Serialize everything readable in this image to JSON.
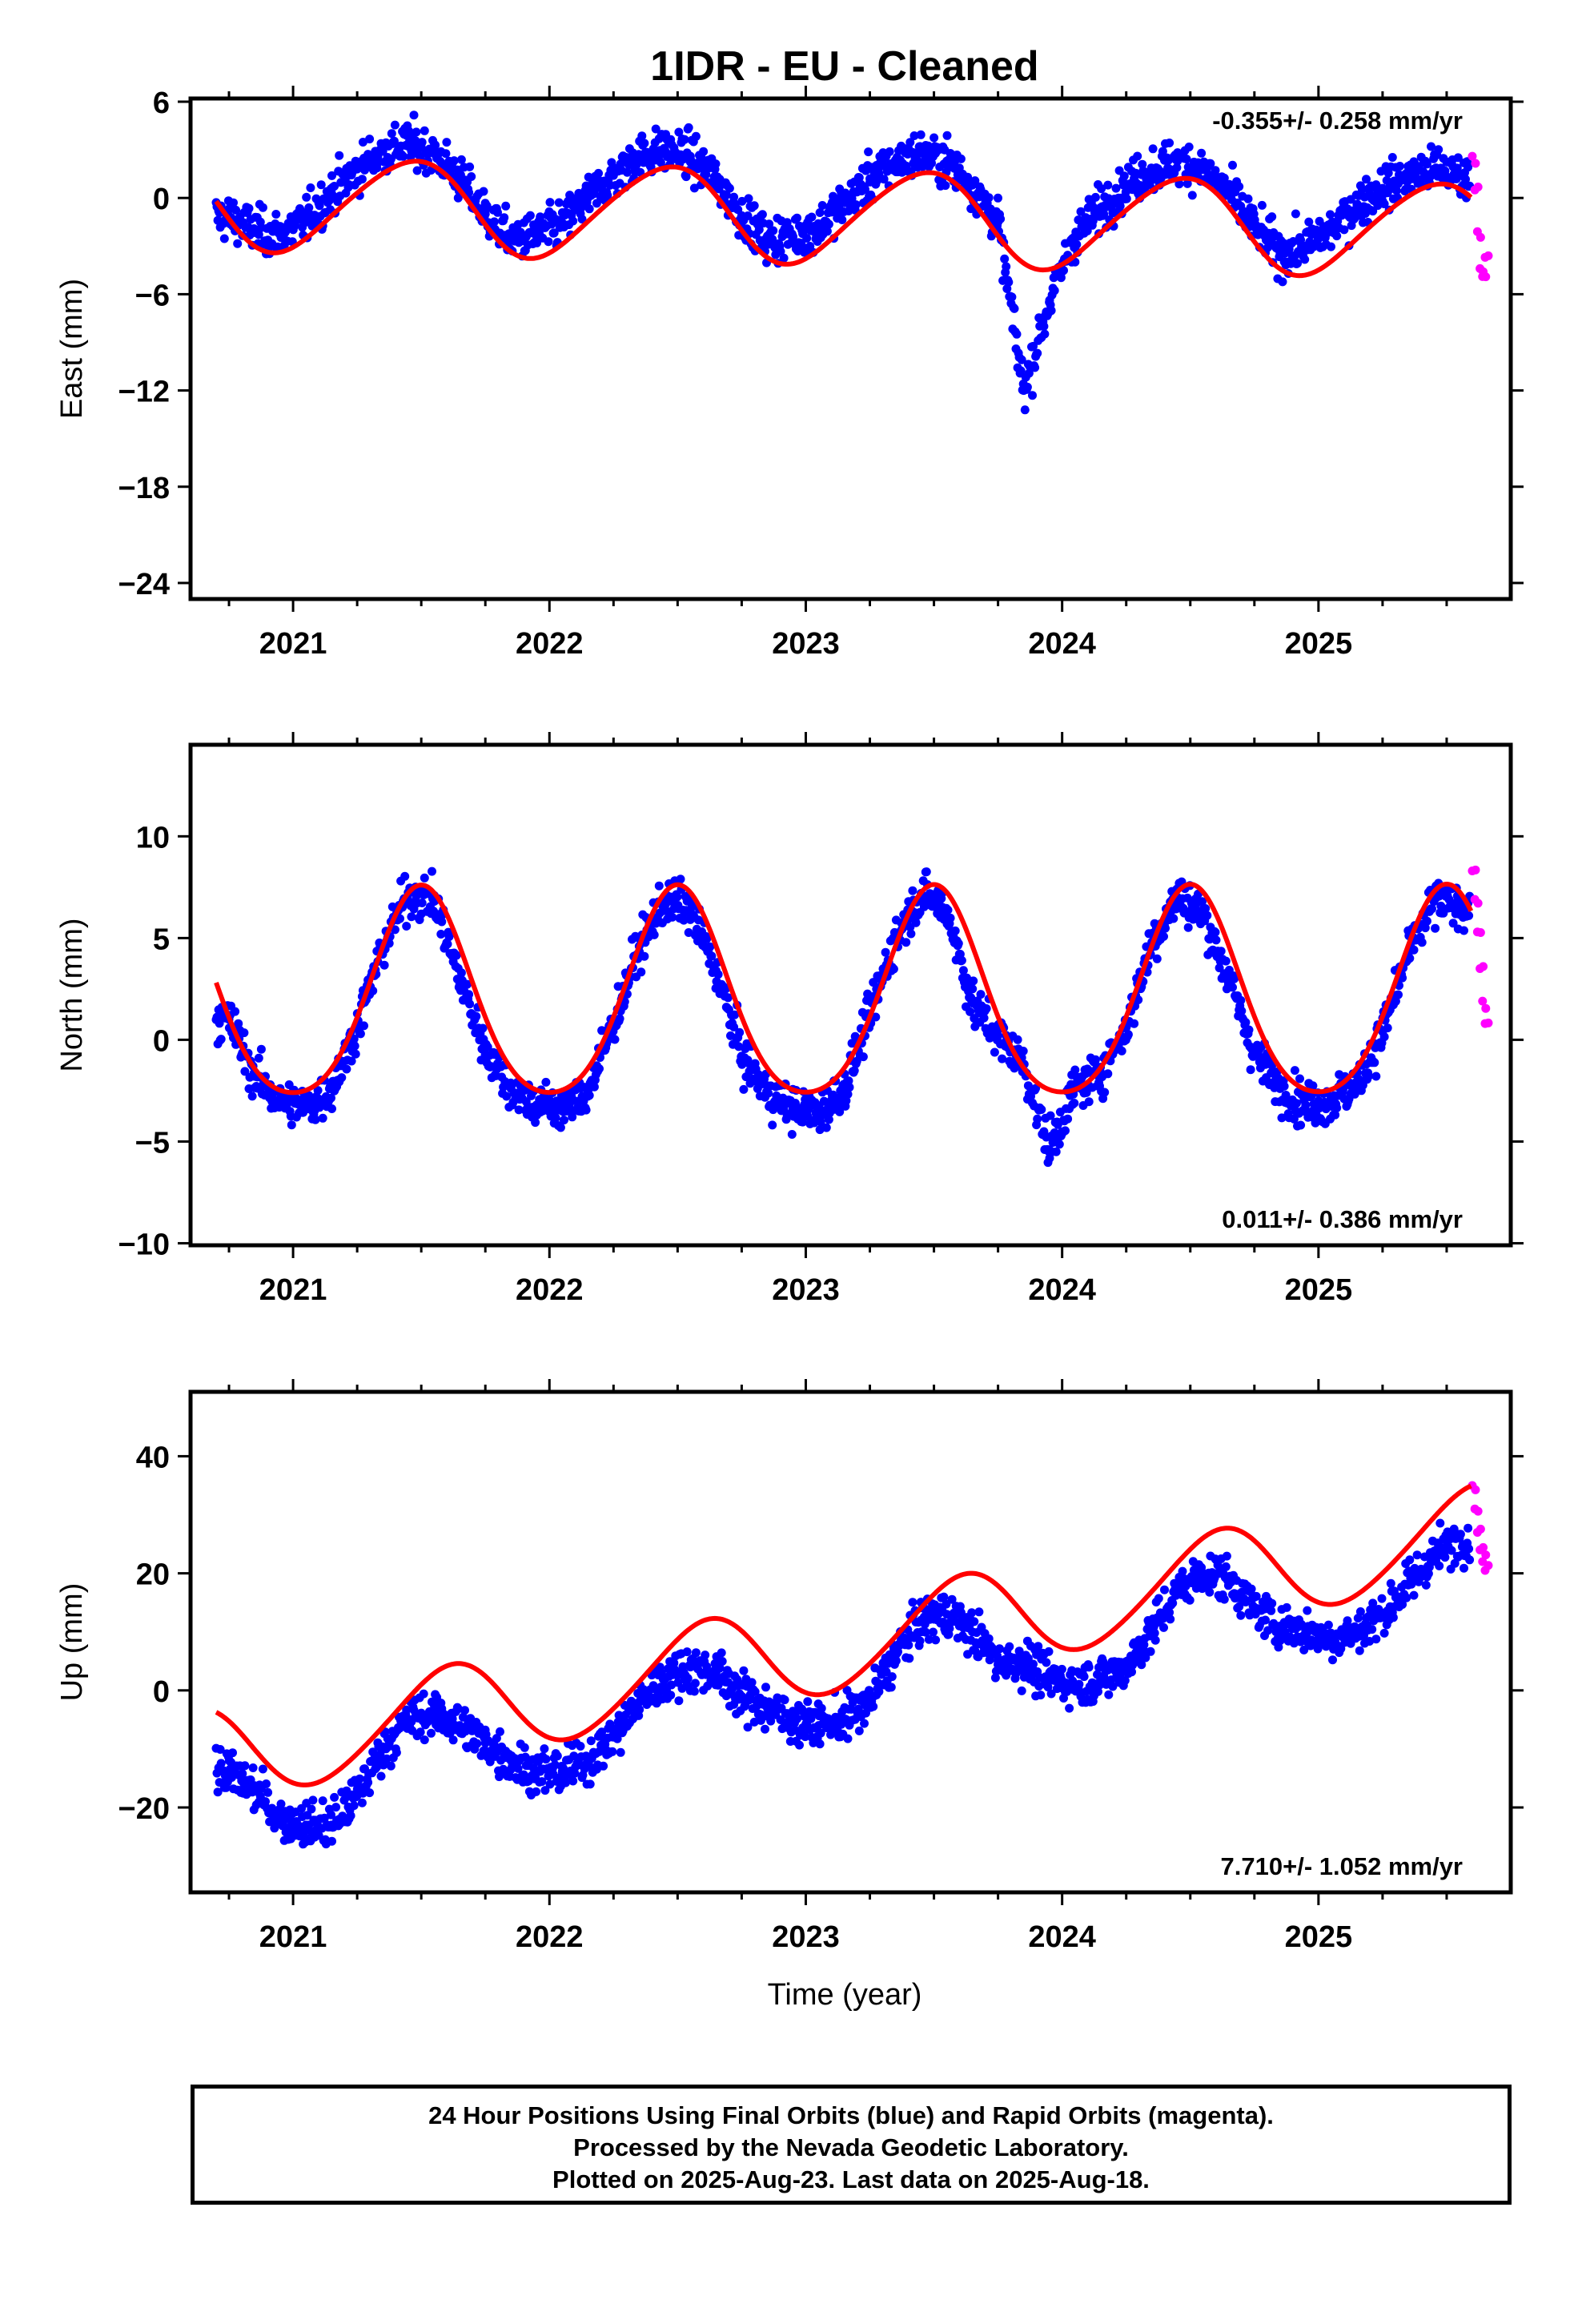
{
  "title": "1IDR  - EU - Cleaned",
  "xlabel": "Time (year)",
  "footer": {
    "line1": "24 Hour Positions Using Final Orbits (blue) and Rapid Orbits (magenta).",
    "line2": "Processed by the Nevada Geodetic Laboratory.",
    "line3": "Plotted on 2025-Aug-23. Last data on 2025-Aug-18."
  },
  "colors": {
    "final": "#0000ff",
    "rapid": "#ff00ff",
    "model": "#ff0000",
    "frame": "#000000"
  },
  "chart_data": [
    {
      "type": "scatter",
      "panel": "east",
      "title": "1IDR  - EU - Cleaned",
      "ylabel": "East (mm)",
      "xlabel": "",
      "xlim": [
        2020.6,
        2025.75
      ],
      "ylim": [
        -25,
        6.2
      ],
      "xticks": [
        2021,
        2022,
        2023,
        2024,
        2025
      ],
      "yticks": [
        6,
        0,
        -6,
        -12,
        -18,
        -24
      ],
      "rate": "-0.355+/- 0.258 mm/yr",
      "rate_position": "top-right",
      "grid": false,
      "model": {
        "offset": -0.3,
        "trend": -0.355,
        "annual_amp": 2.9,
        "annual_peak": 0.45,
        "semi_amp": 0.3,
        "semi_peak": 0.1
      },
      "series": [
        {
          "name": "Final Orbits",
          "color": "#0000ff",
          "x": [
            2020.75,
            2020.85,
            2020.95,
            2021.05,
            2021.15,
            2021.25,
            2021.35,
            2021.45,
            2021.55,
            2021.65,
            2021.75,
            2021.85,
            2021.95,
            2022.05,
            2022.15,
            2022.25,
            2022.35,
            2022.45,
            2022.55,
            2022.65,
            2022.75,
            2022.85,
            2022.95,
            2023.05,
            2023.15,
            2023.25,
            2023.35,
            2023.45,
            2023.55,
            2023.65,
            2023.75,
            2023.85,
            2023.95,
            2024.05,
            2024.15,
            2024.25,
            2024.35,
            2024.45,
            2024.55,
            2024.65,
            2024.75,
            2024.85,
            2024.95,
            2025.05,
            2025.15,
            2025.25,
            2025.35,
            2025.45,
            2025.55
          ],
          "y": [
            -1.2,
            -2.0,
            -2.3,
            -1.4,
            0.3,
            1.8,
            2.9,
            3.4,
            2.8,
            1.2,
            -1.0,
            -2.6,
            -2.3,
            -1.6,
            0.0,
            1.4,
            2.6,
            3.0,
            2.6,
            1.1,
            -1.1,
            -2.6,
            -2.4,
            -1.8,
            -0.3,
            1.2,
            2.2,
            2.8,
            2.3,
            0.8,
            -1.5,
            -12.0,
            -6.5,
            -2.4,
            -0.6,
            0.8,
            1.8,
            2.3,
            1.8,
            0.4,
            -1.8,
            -3.4,
            -3.0,
            -2.0,
            -0.4,
            0.6,
            1.4,
            1.8,
            1.4
          ]
        },
        {
          "name": "Rapid Orbits",
          "color": "#ff00ff",
          "x": [
            2025.6,
            2025.61,
            2025.62,
            2025.63,
            2025.64,
            2025.65
          ],
          "y": [
            2.6,
            0.5,
            -2.1,
            -4.4,
            -4.9,
            -3.7
          ]
        }
      ]
    },
    {
      "type": "scatter",
      "panel": "north",
      "ylabel": "North (mm)",
      "xlabel": "",
      "xlim": [
        2020.6,
        2025.75
      ],
      "ylim": [
        -10.1,
        14.5
      ],
      "xticks": [
        2021,
        2022,
        2023,
        2024,
        2025
      ],
      "yticks": [
        10,
        5,
        0,
        -5,
        -10
      ],
      "rate": "0.011+/- 0.386 mm/yr",
      "rate_position": "bottom-right",
      "grid": false,
      "model": {
        "offset": 1.8,
        "trend": 0.011,
        "annual_amp": 5.1,
        "annual_peak": 0.5,
        "semi_amp": 0.7,
        "semi_peak": 0.0
      },
      "series": [
        {
          "name": "Final Orbits",
          "color": "#0000ff",
          "x": [
            2020.75,
            2020.85,
            2020.95,
            2021.05,
            2021.15,
            2021.25,
            2021.35,
            2021.45,
            2021.55,
            2021.65,
            2021.75,
            2021.85,
            2021.95,
            2022.05,
            2022.15,
            2022.25,
            2022.35,
            2022.45,
            2022.55,
            2022.65,
            2022.75,
            2022.85,
            2022.95,
            2023.05,
            2023.15,
            2023.25,
            2023.35,
            2023.45,
            2023.55,
            2023.65,
            2023.75,
            2023.85,
            2023.95,
            2024.05,
            2024.15,
            2024.25,
            2024.35,
            2024.45,
            2024.55,
            2024.65,
            2024.75,
            2024.85,
            2024.95,
            2025.05,
            2025.15,
            2025.25,
            2025.35,
            2025.45,
            2025.55
          ],
          "y": [
            1.0,
            -1.8,
            -3.0,
            -3.4,
            -2.4,
            0.6,
            4.6,
            7.2,
            6.8,
            3.0,
            -0.4,
            -2.4,
            -3.2,
            -3.4,
            -2.6,
            0.8,
            4.6,
            6.8,
            6.4,
            3.4,
            -0.8,
            -2.6,
            -3.4,
            -3.6,
            -2.4,
            1.2,
            5.0,
            7.2,
            6.4,
            1.8,
            0.2,
            -1.2,
            -5.4,
            -2.4,
            -1.6,
            0.6,
            4.8,
            7.0,
            6.2,
            3.0,
            -0.6,
            -2.4,
            -3.2,
            -3.0,
            -2.2,
            0.4,
            4.2,
            6.8,
            6.6
          ]
        },
        {
          "name": "Rapid Orbits",
          "color": "#ff00ff",
          "x": [
            2025.6,
            2025.61,
            2025.62,
            2025.63,
            2025.64,
            2025.65
          ],
          "y": [
            8.3,
            6.9,
            5.3,
            3.5,
            1.9,
            0.8
          ]
        }
      ]
    },
    {
      "type": "scatter",
      "panel": "up",
      "ylabel": "Up (mm)",
      "xlabel": "Time (year)",
      "xlim": [
        2020.6,
        2025.75
      ],
      "ylim": [
        -34.5,
        51
      ],
      "xticks": [
        2021,
        2022,
        2023,
        2024,
        2025
      ],
      "yticks": [
        40,
        20,
        0,
        -20
      ],
      "rate": "7.710+/- 1.052 mm/yr",
      "rate_position": "bottom-right",
      "grid": false,
      "model": {
        "offset": -11.0,
        "trend": 7.71,
        "annual_amp": 8.0,
        "annual_peak": 0.6,
        "semi_amp": 0.8,
        "semi_peak": 0.2
      },
      "series": [
        {
          "name": "Final Orbits",
          "color": "#0000ff",
          "x": [
            2020.75,
            2020.85,
            2020.95,
            2021.05,
            2021.15,
            2021.25,
            2021.35,
            2021.45,
            2021.55,
            2021.65,
            2021.75,
            2021.85,
            2021.95,
            2022.05,
            2022.15,
            2022.25,
            2022.35,
            2022.45,
            2022.55,
            2022.65,
            2022.75,
            2022.85,
            2022.95,
            2023.05,
            2023.15,
            2023.25,
            2023.35,
            2023.45,
            2023.55,
            2023.65,
            2023.75,
            2023.85,
            2023.95,
            2024.05,
            2024.15,
            2024.25,
            2024.35,
            2024.45,
            2024.55,
            2024.65,
            2024.75,
            2024.85,
            2024.95,
            2025.05,
            2025.15,
            2025.25,
            2025.35,
            2025.45,
            2025.55
          ],
          "y": [
            -14,
            -17,
            -22,
            -23,
            -23,
            -18,
            -10,
            -5,
            -4,
            -6,
            -9,
            -12,
            -14,
            -14,
            -12,
            -8,
            -2,
            2,
            4,
            3,
            -1,
            -3,
            -5,
            -6,
            -5,
            -2,
            6,
            12,
            13,
            10,
            5,
            5,
            2,
            1,
            2,
            4,
            10,
            17,
            20,
            19,
            14,
            11,
            10,
            9,
            10,
            13,
            18,
            23,
            26
          ]
        },
        {
          "name": "Rapid Orbits",
          "color": "#ff00ff",
          "x": [
            2025.6,
            2025.61,
            2025.62,
            2025.63,
            2025.64,
            2025.65
          ],
          "y": [
            35.0,
            31.0,
            27.0,
            24.0,
            22.0,
            20.5
          ]
        }
      ]
    }
  ]
}
